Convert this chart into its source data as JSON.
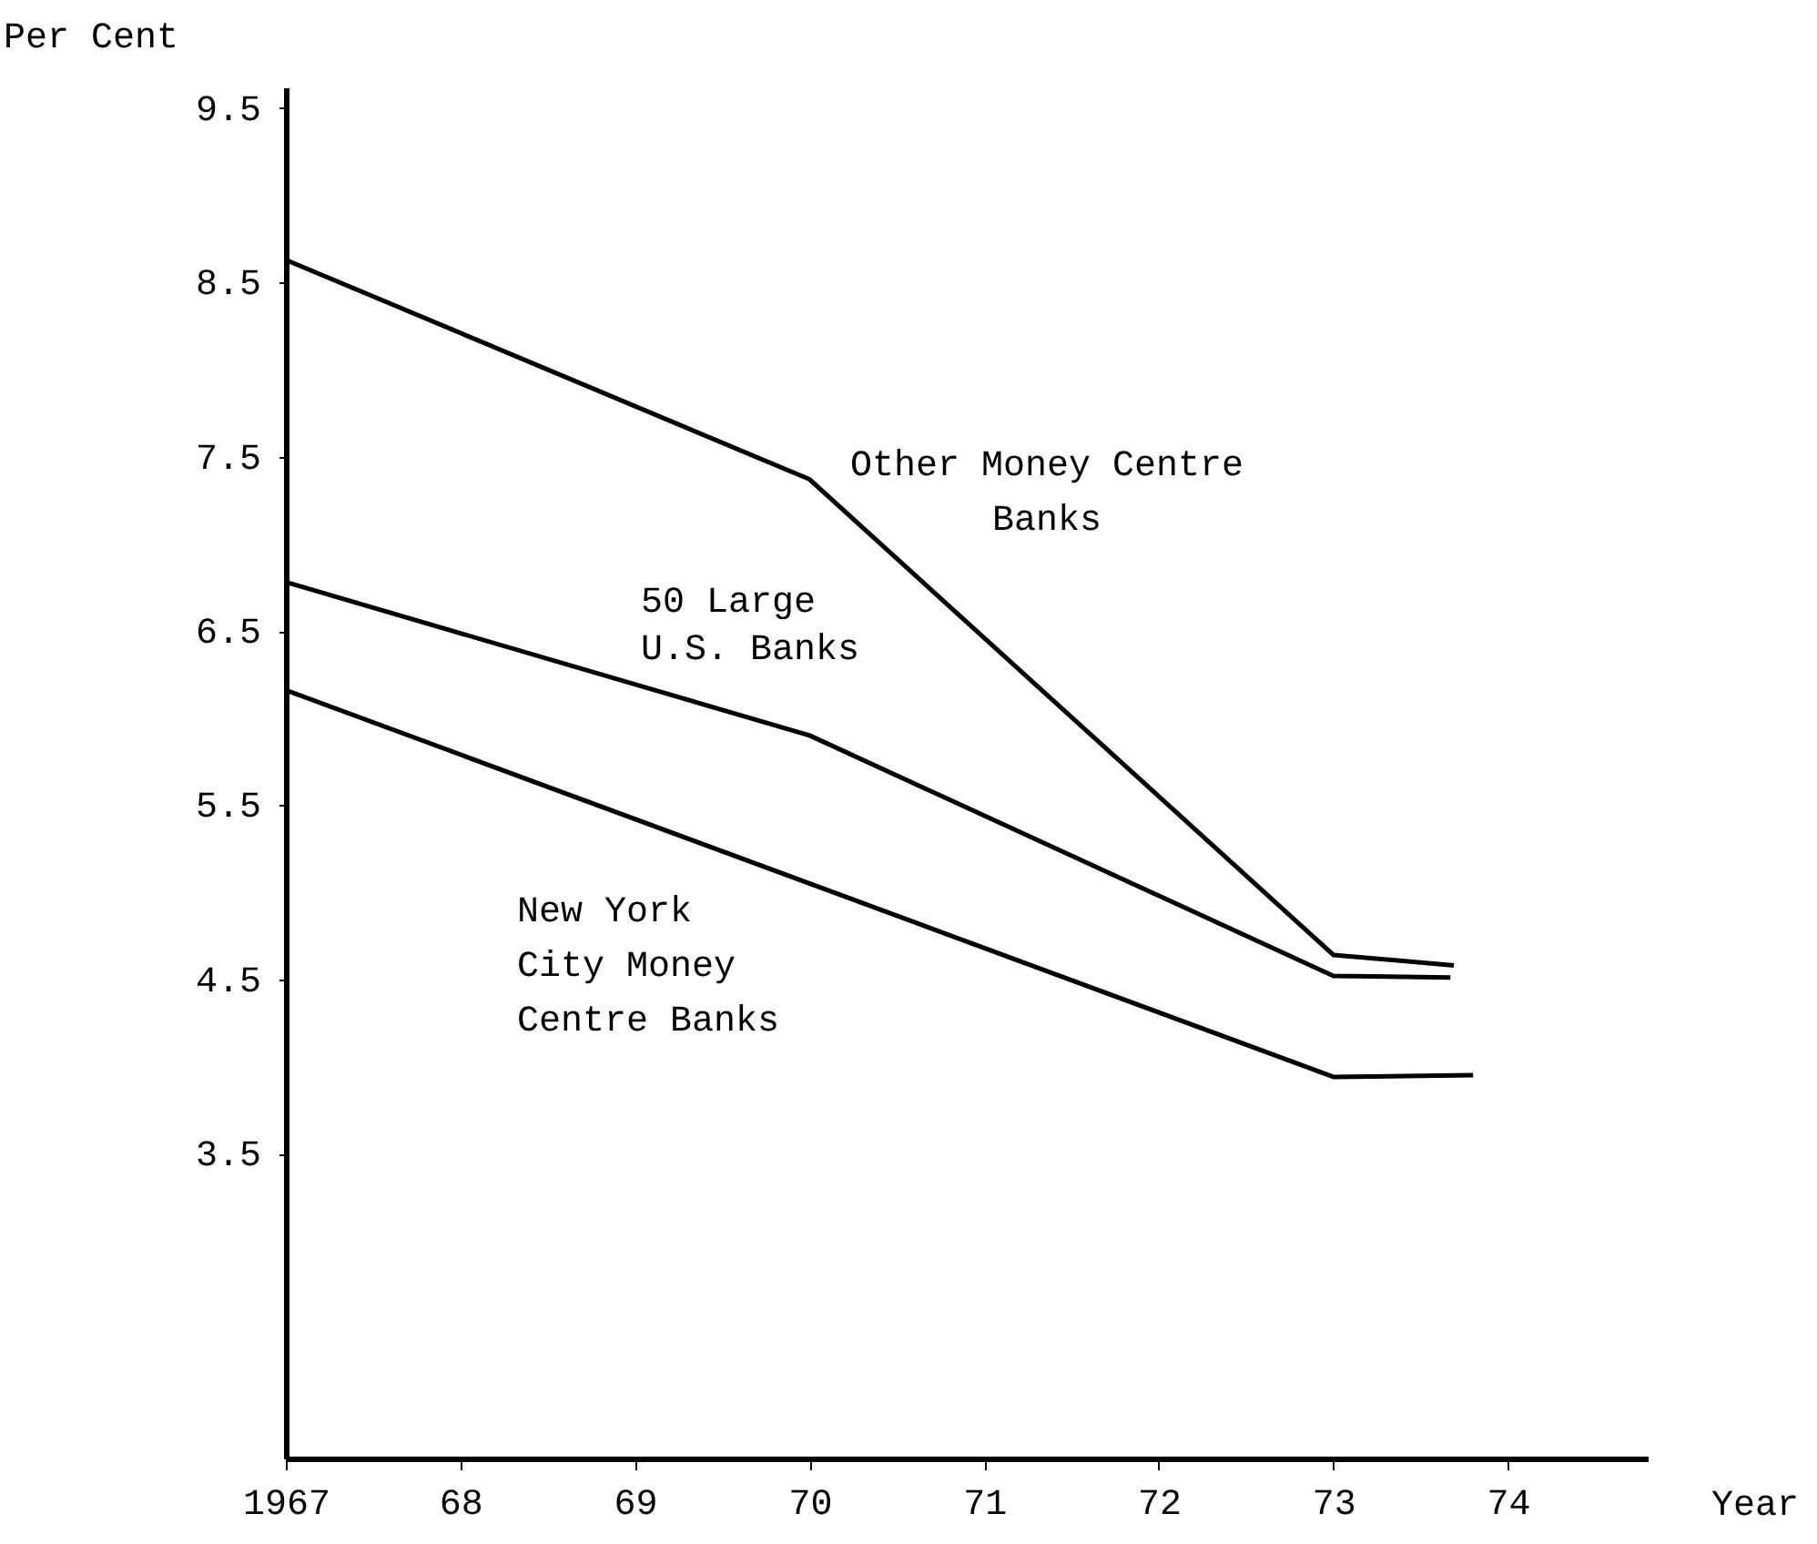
{
  "chart_data": {
    "type": "line",
    "ylabel": "Per Cent",
    "xlabel": "Year",
    "xlim": [
      1967,
      1974.8
    ],
    "ylim": [
      1.75,
      9.62
    ],
    "xticks": [
      {
        "value": 1967,
        "label": "1967"
      },
      {
        "value": 1968,
        "label": "68"
      },
      {
        "value": 1969,
        "label": "69"
      },
      {
        "value": 1970,
        "label": "70"
      },
      {
        "value": 1971,
        "label": "71"
      },
      {
        "value": 1972,
        "label": "72"
      },
      {
        "value": 1973,
        "label": "73"
      },
      {
        "value": 1974,
        "label": "74"
      }
    ],
    "yticks": [
      3.5,
      4.5,
      5.5,
      6.5,
      7.5,
      8.5,
      9.5
    ],
    "grid": false,
    "marker": "none",
    "line_style": "solid",
    "series": [
      {
        "name": "Other Money Centre\nBanks",
        "color": "#000000",
        "x": [
          1967,
          1970,
          1973,
          1973.69
        ],
        "values": [
          8.63,
          7.37,
          4.64,
          4.58
        ]
      },
      {
        "name": "50 Large\n U.S. Banks",
        "color": "#000000",
        "x": [
          1967,
          1970,
          1973,
          1973.67
        ],
        "values": [
          6.78,
          5.9,
          4.52,
          4.51
        ]
      },
      {
        "name": "New York\nCity Money\nCentre Banks",
        "color": "#000000",
        "x": [
          1967,
          1973,
          1973.8
        ],
        "values": [
          6.16,
          3.94,
          3.95
        ]
      }
    ]
  }
}
